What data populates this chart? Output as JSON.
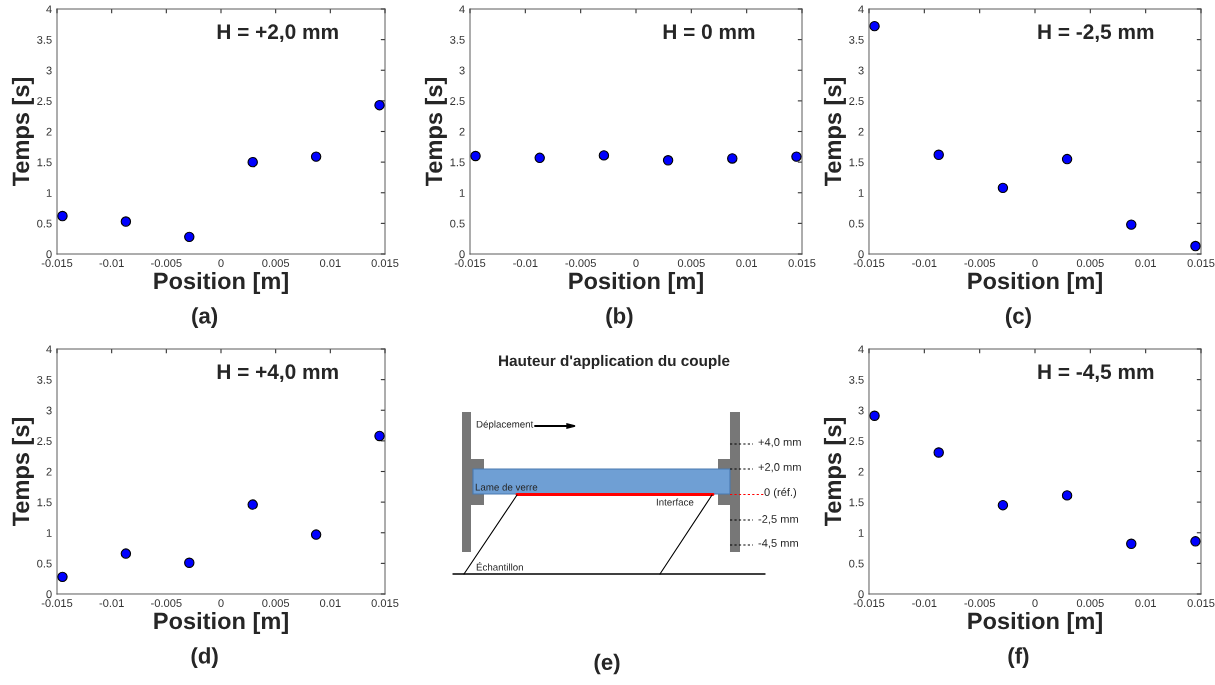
{
  "chart_data": [
    {
      "type": "scatter",
      "xlabel": "Position [m]",
      "ylabel": "Temps [s]",
      "annotations": [
        "H = +2,0 mm",
        "(a)"
      ],
      "color": "#0000ff",
      "marker": "circle",
      "x": [
        -0.0145,
        -0.0087,
        -0.0029,
        0.0029,
        0.0087,
        0.0145
      ],
      "values": [
        0.62,
        0.53,
        0.28,
        1.5,
        1.59,
        2.43
      ],
      "xlim": [
        -0.015,
        0.015
      ],
      "ylim": [
        0,
        4
      ],
      "xticks": [
        -0.015,
        -0.01,
        -0.005,
        0,
        0.005,
        0.01,
        0.015
      ],
      "yticks": [
        0,
        0.5,
        1,
        1.5,
        2,
        2.5,
        3,
        3.5,
        4
      ]
    },
    {
      "type": "scatter",
      "xlabel": "Position [m]",
      "ylabel": "Temps [s]",
      "annotations": [
        "H = 0 mm",
        "(b)"
      ],
      "color": "#0000ff",
      "marker": "circle",
      "x": [
        -0.0145,
        -0.0087,
        -0.0029,
        0.0029,
        0.0087,
        0.0145
      ],
      "values": [
        1.6,
        1.57,
        1.61,
        1.53,
        1.56,
        1.59
      ],
      "xlim": [
        -0.015,
        0.015
      ],
      "ylim": [
        0,
        4
      ],
      "xticks": [
        -0.015,
        -0.01,
        -0.005,
        0,
        0.005,
        0.01,
        0.015
      ],
      "yticks": [
        0,
        0.5,
        1,
        1.5,
        2,
        2.5,
        3,
        3.5,
        4
      ]
    },
    {
      "type": "scatter",
      "xlabel": "Position [m]",
      "ylabel": "Temps [s]",
      "annotations": [
        "H = -2,5 mm",
        "(c)"
      ],
      "color": "#0000ff",
      "marker": "circle",
      "x": [
        -0.0145,
        -0.0087,
        -0.0029,
        0.0029,
        0.0087,
        0.0145
      ],
      "values": [
        3.72,
        1.62,
        1.08,
        1.55,
        0.48,
        0.13
      ],
      "xlim": [
        -0.015,
        0.015
      ],
      "ylim": [
        0,
        4
      ],
      "xticks": [
        -0.015,
        -0.01,
        -0.005,
        0,
        0.005,
        0.01,
        0.015
      ],
      "yticks": [
        0,
        0.5,
        1,
        1.5,
        2,
        2.5,
        3,
        3.5,
        4
      ]
    },
    {
      "type": "scatter",
      "xlabel": "Position [m]",
      "ylabel": "Temps [s]",
      "annotations": [
        "H = +4,0 mm",
        "(d)"
      ],
      "color": "#0000ff",
      "marker": "circle",
      "x": [
        -0.0145,
        -0.0087,
        -0.0029,
        0.0029,
        0.0087,
        0.0145
      ],
      "values": [
        0.28,
        0.66,
        0.51,
        1.46,
        0.97,
        2.58
      ],
      "xlim": [
        -0.015,
        0.015
      ],
      "ylim": [
        0,
        4
      ],
      "xticks": [
        -0.015,
        -0.01,
        -0.005,
        0,
        0.005,
        0.01,
        0.015
      ],
      "yticks": [
        0,
        0.5,
        1,
        1.5,
        2,
        2.5,
        3,
        3.5,
        4
      ]
    },
    {
      "type": "other",
      "title": "Hauteur d'application du couple",
      "annotations": [
        "Déplacement",
        "Lame de verre",
        "Interface",
        "Échantillon",
        "+4,0 mm",
        "+2,0 mm",
        "0 (réf.)",
        "-2,5 mm",
        "-4,5 mm",
        "(e)"
      ]
    },
    {
      "type": "scatter",
      "xlabel": "Position [m]",
      "ylabel": "Temps [s]",
      "annotations": [
        "H = -4,5 mm",
        "(f)"
      ],
      "color": "#0000ff",
      "marker": "circle",
      "x": [
        -0.0145,
        -0.0087,
        -0.0029,
        0.0029,
        0.0087,
        0.0145
      ],
      "values": [
        2.91,
        2.31,
        1.45,
        1.61,
        0.82,
        0.86
      ],
      "xlim": [
        -0.015,
        0.015
      ],
      "ylim": [
        0,
        4
      ],
      "xticks": [
        -0.015,
        -0.01,
        -0.005,
        0,
        0.005,
        0.01,
        0.015
      ],
      "yticks": [
        0,
        0.5,
        1,
        1.5,
        2,
        2.5,
        3,
        3.5,
        4
      ]
    }
  ]
}
